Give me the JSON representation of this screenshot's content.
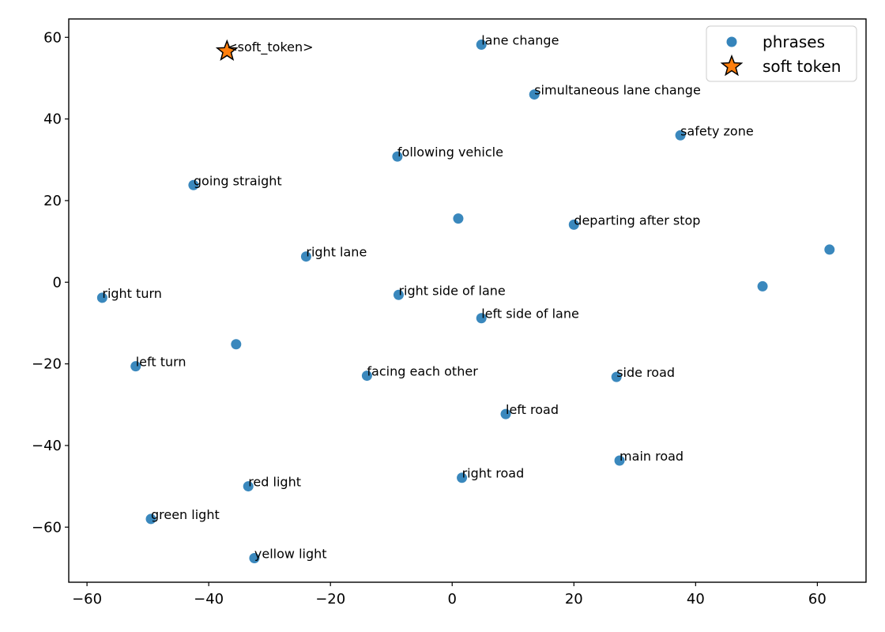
{
  "chart_data": {
    "type": "scatter",
    "xlim": [
      -63,
      68
    ],
    "ylim": [
      -73.5,
      64.5
    ],
    "xticks": [
      -60,
      -40,
      -20,
      0,
      20,
      40,
      60
    ],
    "yticks": [
      60,
      40,
      20,
      0,
      -20,
      -40,
      -60
    ],
    "xtick_labels": [
      "−60",
      "−40",
      "−20",
      "0",
      "20",
      "40",
      "60"
    ],
    "ytick_labels": [
      "60",
      "40",
      "20",
      "0",
      "−20",
      "−40",
      "−60"
    ],
    "grid": false,
    "legend": {
      "placement": "top-right",
      "entries": [
        {
          "label": "phrases",
          "marker": "circle",
          "color": "#1f77b4"
        },
        {
          "label": "soft token",
          "marker": "star",
          "color": "#ff7f0e"
        }
      ]
    },
    "series": [
      {
        "name": "phrases",
        "marker": "circle",
        "color": "#1f77b4",
        "points": [
          {
            "x": 4.8,
            "y": 58.2,
            "label": "lane change"
          },
          {
            "x": 13.5,
            "y": 46.0,
            "label": "simultaneous lane change"
          },
          {
            "x": 37.5,
            "y": 36.0,
            "label": "safety zone"
          },
          {
            "x": -9.0,
            "y": 30.8,
            "label": "following vehicle"
          },
          {
            "x": -42.5,
            "y": 23.8,
            "label": "going straight"
          },
          {
            "x": 1.0,
            "y": 15.6,
            "label": ""
          },
          {
            "x": 20.0,
            "y": 14.1,
            "label": "departing after stop"
          },
          {
            "x": 62.0,
            "y": 8.0,
            "label": ""
          },
          {
            "x": -24.0,
            "y": 6.3,
            "label": "right lane"
          },
          {
            "x": 51.0,
            "y": -1.0,
            "label": ""
          },
          {
            "x": -57.5,
            "y": -3.8,
            "label": "right turn"
          },
          {
            "x": -8.8,
            "y": -3.1,
            "label": "right side of lane"
          },
          {
            "x": 4.8,
            "y": -8.8,
            "label": "left side of lane"
          },
          {
            "x": -35.5,
            "y": -15.2,
            "label": ""
          },
          {
            "x": -52.0,
            "y": -20.6,
            "label": "left turn"
          },
          {
            "x": -14.0,
            "y": -22.9,
            "label": "facing each other"
          },
          {
            "x": 27.0,
            "y": -23.2,
            "label": "side road"
          },
          {
            "x": 8.8,
            "y": -32.3,
            "label": "left road"
          },
          {
            "x": 27.5,
            "y": -43.7,
            "label": "main road"
          },
          {
            "x": 1.6,
            "y": -47.9,
            "label": "right road"
          },
          {
            "x": -33.5,
            "y": -50.0,
            "label": "red light"
          },
          {
            "x": -49.5,
            "y": -58.0,
            "label": "green light"
          },
          {
            "x": -32.5,
            "y": -67.6,
            "label": "yellow light"
          }
        ]
      },
      {
        "name": "soft token",
        "marker": "star",
        "color": "#ff7f0e",
        "points": [
          {
            "x": -37.0,
            "y": 56.6,
            "label": "<soft_token>"
          }
        ]
      }
    ]
  }
}
